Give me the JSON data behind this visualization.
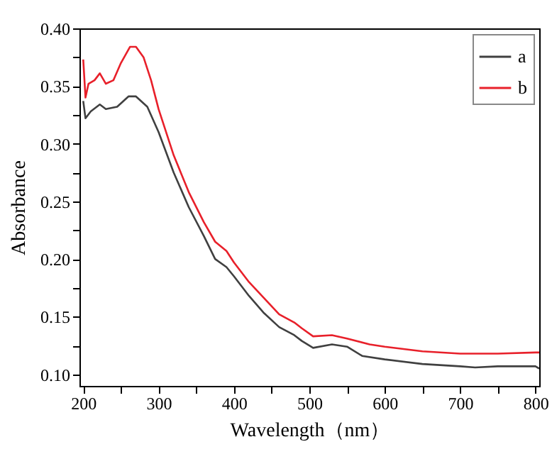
{
  "chart_data": {
    "type": "line",
    "xlabel": "Wavelength（nm）",
    "ylabel": "Absorbance",
    "xlim": [
      195,
      805
    ],
    "ylim": [
      0.09,
      0.4
    ],
    "xticks": [
      200,
      {
        "value": 250,
        "label": null
      },
      300,
      {
        "value": 350,
        "label": null
      },
      400,
      {
        "value": 450,
        "label": null
      },
      500,
      {
        "value": 550,
        "label": null
      },
      600,
      {
        "value": 650,
        "label": null
      },
      700,
      {
        "value": 750,
        "label": null
      },
      800
    ],
    "yticks": [
      {
        "value": 0.1,
        "label": "0.10"
      },
      {
        "value": 0.125,
        "label": null
      },
      {
        "value": 0.15,
        "label": "0.15"
      },
      {
        "value": 0.175,
        "label": null
      },
      {
        "value": 0.2,
        "label": "0.20"
      },
      {
        "value": 0.225,
        "label": null
      },
      {
        "value": 0.25,
        "label": "0.25"
      },
      {
        "value": 0.275,
        "label": null
      },
      {
        "value": 0.3,
        "label": "0.30"
      },
      {
        "value": 0.325,
        "label": null
      },
      {
        "value": 0.35,
        "label": "0.35"
      },
      {
        "value": 0.375,
        "label": null
      },
      {
        "value": 0.4,
        "label": "0.40"
      }
    ],
    "grid": false,
    "legend": "top right",
    "line_style": "solid",
    "series": [
      {
        "name": "a",
        "color": "#404040",
        "x": [
          200,
          203,
          210,
          222,
          230,
          245,
          260,
          270,
          285,
          300,
          320,
          340,
          360,
          375,
          390,
          400,
          420,
          440,
          460,
          480,
          490,
          505,
          530,
          550,
          570,
          600,
          650,
          700,
          720,
          750,
          800,
          805
        ],
        "values": [
          0.337,
          0.322,
          0.328,
          0.334,
          0.33,
          0.332,
          0.341,
          0.341,
          0.332,
          0.31,
          0.275,
          0.245,
          0.22,
          0.2,
          0.193,
          0.185,
          0.168,
          0.153,
          0.141,
          0.134,
          0.129,
          0.123,
          0.126,
          0.124,
          0.116,
          0.113,
          0.109,
          0.107,
          0.106,
          0.107,
          0.107,
          0.105
        ]
      },
      {
        "name": "b",
        "color": "#e8202a",
        "x": [
          200,
          203,
          207,
          215,
          222,
          230,
          240,
          250,
          262,
          270,
          280,
          290,
          300,
          320,
          340,
          360,
          375,
          390,
          400,
          420,
          440,
          460,
          480,
          490,
          505,
          530,
          550,
          580,
          600,
          650,
          700,
          750,
          800,
          805
        ],
        "values": [
          0.373,
          0.34,
          0.352,
          0.355,
          0.361,
          0.352,
          0.355,
          0.37,
          0.384,
          0.384,
          0.375,
          0.355,
          0.33,
          0.29,
          0.258,
          0.232,
          0.215,
          0.207,
          0.197,
          0.18,
          0.166,
          0.152,
          0.145,
          0.14,
          0.133,
          0.134,
          0.131,
          0.126,
          0.124,
          0.12,
          0.118,
          0.118,
          0.119,
          0.119
        ]
      }
    ]
  }
}
